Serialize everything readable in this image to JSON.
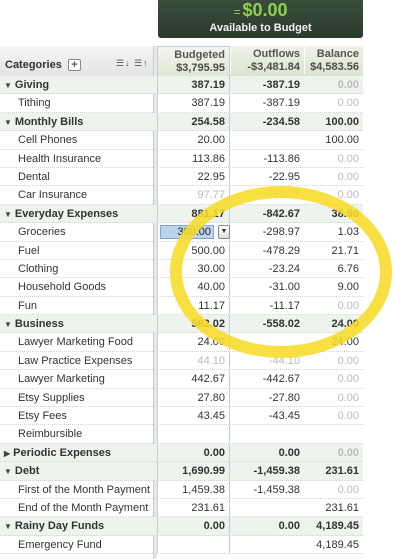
{
  "header": {
    "available_prefix": "=",
    "available_amount": "$0.00",
    "available_label": "Available to Budget",
    "categories_label": "Categories",
    "add_button": "+",
    "sort_icons": "☰↓ ☰↑"
  },
  "columns": {
    "budgeted": {
      "label": "Budgeted",
      "total": "$3,795.95"
    },
    "outflows": {
      "label": "Outflows",
      "total": "-$3,481.84"
    },
    "balance": {
      "label": "Balance",
      "total": "$4,583.56"
    }
  },
  "rows": [
    {
      "name": "Giving",
      "type": "group",
      "expanded": true,
      "budgeted": "387.19",
      "outflows": "-387.19",
      "balance": "0.00"
    },
    {
      "name": "Tithing",
      "type": "item",
      "budgeted": "387.19",
      "outflows": "-387.19",
      "balance": "0.00"
    },
    {
      "name": "Monthly Bills",
      "type": "group",
      "expanded": true,
      "budgeted": "254.58",
      "outflows": "-234.58",
      "balance": "100.00"
    },
    {
      "name": "Cell Phones",
      "type": "item",
      "budgeted": "20.00",
      "outflows": "",
      "balance": "100.00"
    },
    {
      "name": "Health Insurance",
      "type": "item",
      "budgeted": "113.86",
      "outflows": "-113.86",
      "balance": "0.00"
    },
    {
      "name": "Dental",
      "type": "item",
      "budgeted": "22.95",
      "outflows": "-22.95",
      "balance": "0.00"
    },
    {
      "name": "Car Insurance",
      "type": "item",
      "budgeted": "97.77",
      "outflows": "-97.77",
      "balance": "0.00"
    },
    {
      "name": "Everyday Expenses",
      "type": "group",
      "expanded": true,
      "budgeted": "881.17",
      "outflows": "-842.67",
      "balance": "38.50"
    },
    {
      "name": "Groceries",
      "type": "item",
      "budgeted": "300.00",
      "outflows": "-298.97",
      "balance": "1.03",
      "editing": true
    },
    {
      "name": "Fuel",
      "type": "item",
      "budgeted": "500.00",
      "outflows": "-478.29",
      "balance": "21.71"
    },
    {
      "name": "Clothing",
      "type": "item",
      "budgeted": "30.00",
      "outflows": "-23.24",
      "balance": "6.76"
    },
    {
      "name": "Household Goods",
      "type": "item",
      "budgeted": "40.00",
      "outflows": "-31.00",
      "balance": "9.00"
    },
    {
      "name": "Fun",
      "type": "item",
      "budgeted": "11.17",
      "outflows": "-11.17",
      "balance": "0.00"
    },
    {
      "name": "Business",
      "type": "group",
      "expanded": true,
      "budgeted": "582.02",
      "outflows": "-558.02",
      "balance": "24.00"
    },
    {
      "name": "Lawyer Marketing Food",
      "type": "item",
      "budgeted": "24.00",
      "outflows": "",
      "balance": "24.00"
    },
    {
      "name": "Law Practice Expenses",
      "type": "item",
      "budgeted": "44.10",
      "outflows": "-44.10",
      "balance": "0.00"
    },
    {
      "name": "Lawyer Marketing",
      "type": "item",
      "budgeted": "442.67",
      "outflows": "-442.67",
      "balance": "0.00"
    },
    {
      "name": "Etsy Supplies",
      "type": "item",
      "budgeted": "27.80",
      "outflows": "-27.80",
      "balance": "0.00"
    },
    {
      "name": "Etsy Fees",
      "type": "item",
      "budgeted": "43.45",
      "outflows": "-43.45",
      "balance": "0.00"
    },
    {
      "name": "Reimbursible",
      "type": "item",
      "budgeted": "",
      "outflows": "",
      "balance": ""
    },
    {
      "name": "Periodic Expenses",
      "type": "group",
      "expanded": false,
      "budgeted": "0.00",
      "outflows": "0.00",
      "balance": "0.00"
    },
    {
      "name": "Debt",
      "type": "group",
      "expanded": true,
      "budgeted": "1,690.99",
      "outflows": "-1,459.38",
      "balance": "231.61"
    },
    {
      "name": "First of the Month Payment",
      "type": "item",
      "budgeted": "1,459.38",
      "outflows": "-1,459.38",
      "balance": "0.00"
    },
    {
      "name": "End of the Month Payment",
      "type": "item",
      "budgeted": "231.61",
      "outflows": "",
      "balance": "231.61"
    },
    {
      "name": "Rainy Day Funds",
      "type": "group",
      "expanded": true,
      "budgeted": "0.00",
      "outflows": "0.00",
      "balance": "4,189.45"
    },
    {
      "name": "Emergency Fund",
      "type": "item",
      "budgeted": "",
      "outflows": "",
      "balance": "4,189.45"
    }
  ],
  "colors": {
    "available_amount": "#8fd14f",
    "highlight_ring": "#f7dc28",
    "group_row_bg": "#eef3ee",
    "zero_text": "#bbbbbb"
  }
}
